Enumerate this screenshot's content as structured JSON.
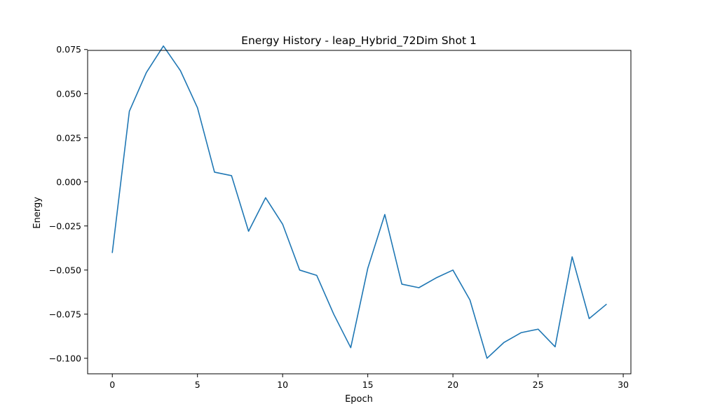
{
  "chart_data": {
    "type": "line",
    "title": "Energy History - leap_Hybrid_72Dim Shot 1",
    "xlabel": "Epoch",
    "ylabel": "Energy",
    "xlim": [
      -1.45,
      30.45
    ],
    "ylim": [
      -0.1088,
      0.0745
    ],
    "x_ticks": [
      0,
      5,
      10,
      15,
      20,
      25,
      30
    ],
    "y_ticks": [
      -0.1,
      -0.075,
      -0.05,
      -0.025,
      0.0,
      0.025,
      0.05,
      0.075
    ],
    "x_tick_labels": [
      "0",
      "5",
      "10",
      "15",
      "20",
      "25",
      "30"
    ],
    "y_tick_labels": [
      "−0.100",
      "−0.075",
      "−0.050",
      "−0.025",
      "0.000",
      "0.025",
      "0.050",
      "0.075"
    ],
    "grid": false,
    "series": [
      {
        "color": "#1f77b4",
        "x": [
          0,
          1,
          2,
          3,
          4,
          5,
          6,
          7,
          8,
          9,
          10,
          11,
          12,
          13,
          14,
          15,
          16,
          17,
          18,
          19,
          20,
          21,
          22,
          23,
          24,
          25,
          26,
          27,
          28,
          29
        ],
        "y": [
          -0.04,
          0.04,
          0.062,
          0.077,
          0.063,
          0.042,
          0.0055,
          0.0035,
          -0.028,
          -0.009,
          -0.024,
          -0.05,
          -0.053,
          -0.075,
          -0.094,
          -0.049,
          -0.0185,
          -0.058,
          -0.06,
          -0.0545,
          -0.05,
          -0.067,
          -0.1,
          -0.091,
          -0.0855,
          -0.0835,
          -0.0935,
          -0.0425,
          -0.0775,
          -0.0695
        ]
      }
    ]
  }
}
